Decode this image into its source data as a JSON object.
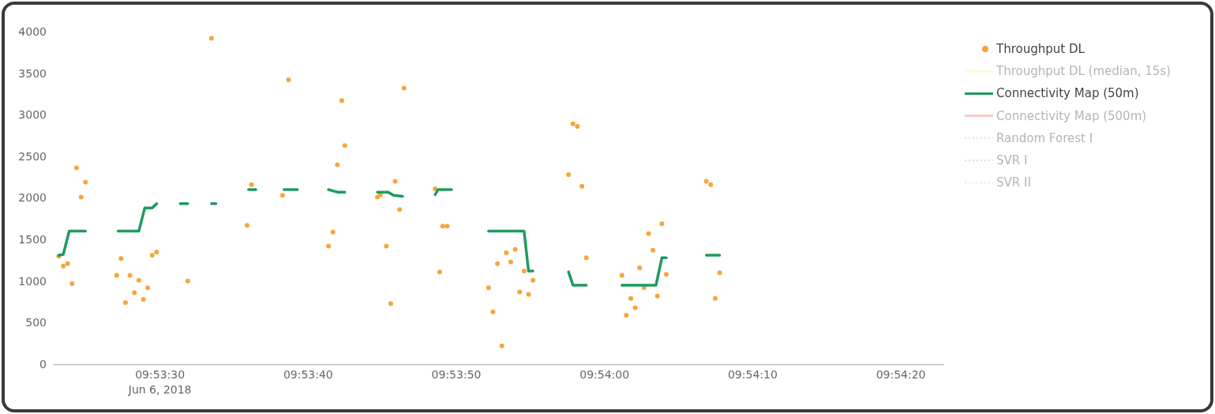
{
  "chart_data": {
    "type": "scatter",
    "xlim": [
      "2018-06-06T09:53:22.8",
      "2018-06-06T09:54:22.9"
    ],
    "xticks": [
      {
        "value": "2018-06-06T09:53:30",
        "label": "09:53:30\nJun 6, 2018"
      },
      {
        "value": "2018-06-06T09:53:40",
        "label": "09:53:40"
      },
      {
        "value": "2018-06-06T09:53:50",
        "label": "09:53:50"
      },
      {
        "value": "2018-06-06T09:54:00",
        "label": "09:54:00"
      },
      {
        "value": "2018-06-06T09:54:10",
        "label": "09:54:10"
      },
      {
        "value": "2018-06-06T09:54:20",
        "label": "09:54:20"
      }
    ],
    "ylim": [
      0,
      4000
    ],
    "yticks": [
      0,
      500,
      1000,
      1500,
      2000,
      2500,
      3000,
      3500,
      4000
    ],
    "legend": "right",
    "series": [
      {
        "name": "Throughput DL",
        "marker": "circle",
        "color": "#f7a53c",
        "x": [
          "2018-06-06T09:53:23.2",
          "2018-06-06T09:53:23.5",
          "2018-06-06T09:53:23.8",
          "2018-06-06T09:53:24.1",
          "2018-06-06T09:53:24.4",
          "2018-06-06T09:53:24.7",
          "2018-06-06T09:53:25.0",
          "2018-06-06T09:53:27.1",
          "2018-06-06T09:53:27.4",
          "2018-06-06T09:53:27.7",
          "2018-06-06T09:53:28.0",
          "2018-06-06T09:53:28.3",
          "2018-06-06T09:53:28.6",
          "2018-06-06T09:53:28.9",
          "2018-06-06T09:53:29.2",
          "2018-06-06T09:53:29.5",
          "2018-06-06T09:53:29.8",
          "2018-06-06T09:53:31.9",
          "2018-06-06T09:53:33.5",
          "2018-06-06T09:53:35.9",
          "2018-06-06T09:53:36.2",
          "2018-06-06T09:53:38.3",
          "2018-06-06T09:53:38.7",
          "2018-06-06T09:53:41.4",
          "2018-06-06T09:53:41.7",
          "2018-06-06T09:53:42.0",
          "2018-06-06T09:53:42.3",
          "2018-06-06T09:53:42.5",
          "2018-06-06T09:53:44.7",
          "2018-06-06T09:53:44.9",
          "2018-06-06T09:53:45.3",
          "2018-06-06T09:53:45.6",
          "2018-06-06T09:53:45.9",
          "2018-06-06T09:53:46.2",
          "2018-06-06T09:53:46.5",
          "2018-06-06T09:53:48.6",
          "2018-06-06T09:53:48.9",
          "2018-06-06T09:53:49.1",
          "2018-06-06T09:53:49.4",
          "2018-06-06T09:53:52.2",
          "2018-06-06T09:53:52.5",
          "2018-06-06T09:53:52.8",
          "2018-06-06T09:53:53.1",
          "2018-06-06T09:53:53.4",
          "2018-06-06T09:53:53.7",
          "2018-06-06T09:53:54.0",
          "2018-06-06T09:53:54.3",
          "2018-06-06T09:53:54.6",
          "2018-06-06T09:53:54.9",
          "2018-06-06T09:53:55.2",
          "2018-06-06T09:53:57.6",
          "2018-06-06T09:53:57.9",
          "2018-06-06T09:53:58.2",
          "2018-06-06T09:53:58.5",
          "2018-06-06T09:53:58.8",
          "2018-06-06T09:54:01.2",
          "2018-06-06T09:54:01.5",
          "2018-06-06T09:54:01.8",
          "2018-06-06T09:54:02.1",
          "2018-06-06T09:54:02.4",
          "2018-06-06T09:54:02.7",
          "2018-06-06T09:54:03.0",
          "2018-06-06T09:54:03.3",
          "2018-06-06T09:54:03.6",
          "2018-06-06T09:54:03.9",
          "2018-06-06T09:54:04.2",
          "2018-06-06T09:54:06.9",
          "2018-06-06T09:54:07.2",
          "2018-06-06T09:54:07.5",
          "2018-06-06T09:54:07.8"
        ],
        "values": [
          1300,
          1180,
          1210,
          970,
          2360,
          2010,
          2190,
          1070,
          1270,
          740,
          1070,
          860,
          1010,
          780,
          920,
          1310,
          1350,
          1000,
          3920,
          1670,
          2160,
          2030,
          3420,
          1420,
          1590,
          2400,
          3170,
          2630,
          2010,
          2040,
          1420,
          730,
          2200,
          1860,
          3320,
          2110,
          1110,
          1660,
          1660,
          920,
          630,
          1210,
          220,
          1340,
          1230,
          1380,
          870,
          1120,
          840,
          1010,
          2280,
          2890,
          2860,
          2140,
          1280,
          1070,
          590,
          790,
          680,
          1160,
          920,
          1570,
          1370,
          820,
          1690,
          1080,
          2200,
          2160,
          790,
          1100
        ]
      },
      {
        "name": "Throughput DL (median, 15s)",
        "type": "line",
        "line_style": "solid",
        "color": "#fff3a0"
      },
      {
        "name": "Connectivity Map (50m)",
        "type": "line",
        "line_style": "solid",
        "color": "#1f9a5e",
        "x": [
          "2018-06-06T09:53:23.2",
          "2018-06-06T09:53:23.5",
          "2018-06-06T09:53:23.9",
          "2018-06-06T09:53:25.0",
          "2018-06-06T09:53:26.0",
          "2018-06-06T09:53:27.2",
          "2018-06-06T09:53:28.6",
          "2018-06-06T09:53:29.0",
          "2018-06-06T09:53:29.5",
          "2018-06-06T09:53:29.8",
          "2018-06-06T09:53:30.6",
          "2018-06-06T09:53:31.4",
          "2018-06-06T09:53:31.9",
          "2018-06-06T09:53:32.7",
          "2018-06-06T09:53:33.5",
          "2018-06-06T09:53:33.8",
          "2018-06-06T09:53:34.9",
          "2018-06-06T09:53:36.0",
          "2018-06-06T09:53:36.5",
          "2018-06-06T09:53:37.5",
          "2018-06-06T09:53:38.4",
          "2018-06-06T09:53:39.3",
          "2018-06-06T09:53:40.3",
          "2018-06-06T09:53:41.4",
          "2018-06-06T09:53:42.0",
          "2018-06-06T09:53:42.5",
          "2018-06-06T09:53:43.6",
          "2018-06-06T09:53:44.7",
          "2018-06-06T09:53:45.4",
          "2018-06-06T09:53:45.8",
          "2018-06-06T09:53:46.4",
          "2018-06-06T09:53:47.5",
          "2018-06-06T09:53:48.6",
          "2018-06-06T09:53:48.8",
          "2018-06-06T09:53:49.7",
          "2018-06-06T09:53:51.0",
          "2018-06-06T09:53:52.2",
          "2018-06-06T09:53:54.6",
          "2018-06-06T09:53:54.9",
          "2018-06-06T09:53:55.2",
          "2018-06-06T09:53:56.4",
          "2018-06-06T09:53:57.6",
          "2018-06-06T09:53:57.9",
          "2018-06-06T09:53:58.8",
          "2018-06-06T09:54:00.0",
          "2018-06-06T09:54:01.2",
          "2018-06-06T09:54:03.5",
          "2018-06-06T09:54:03.9",
          "2018-06-06T09:54:04.2",
          "2018-06-06T09:54:05.5",
          "2018-06-06T09:54:06.9",
          "2018-06-06T09:54:07.8"
        ],
        "values": [
          1310,
          1320,
          1600,
          1600,
          null,
          1600,
          1600,
          1880,
          1880,
          1930,
          null,
          1930,
          1930,
          null,
          1930,
          1930,
          null,
          2100,
          2100,
          null,
          2100,
          2100,
          null,
          2100,
          2070,
          2070,
          null,
          2070,
          2070,
          2030,
          2020,
          null,
          2040,
          2100,
          2100,
          null,
          1600,
          1600,
          1120,
          1120,
          null,
          1110,
          950,
          950,
          null,
          950,
          950,
          1280,
          1280,
          null,
          1310,
          1310
        ]
      },
      {
        "name": "Connectivity Map (500m)",
        "type": "line",
        "line_style": "solid",
        "color": "#f08080"
      },
      {
        "name": "Random Forest I",
        "type": "line",
        "line_style": "dotted",
        "color": "#a89cd8"
      },
      {
        "name": "SVR I",
        "type": "line",
        "line_style": "dotted",
        "color": "#b07aa8"
      },
      {
        "name": "SVR II",
        "type": "line",
        "line_style": "dotted",
        "color": "#f0a8c0"
      }
    ]
  }
}
